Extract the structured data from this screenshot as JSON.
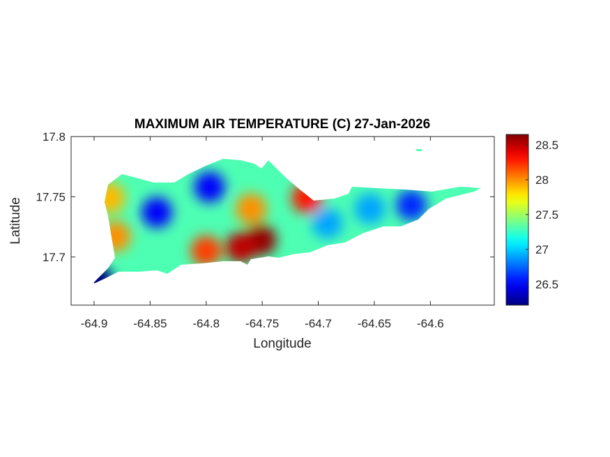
{
  "chart_data": {
    "type": "heatmap",
    "title": "MAXIMUM AIR TEMPERATURE (C) 27-Jan-2026",
    "x_label": "Longitude",
    "y_label": "Latitude",
    "xlim": [
      -64.9205,
      -64.543
    ],
    "ylim": [
      17.66,
      17.8
    ],
    "xticks": [
      -64.9,
      -64.85,
      -64.8,
      -64.75,
      -64.7,
      -64.65,
      -64.6
    ],
    "yticks": [
      17.7,
      17.75,
      17.8
    ],
    "clim": [
      26.2,
      28.65
    ],
    "cticks": [
      26.5,
      27,
      27.5,
      28,
      28.5
    ],
    "colormap": "jet",
    "x": [
      -64.751,
      -64.769,
      -64.8,
      -64.76,
      -64.71,
      -64.881,
      -64.886,
      -64.844,
      -64.797,
      -64.617,
      -64.897,
      -64.654,
      -64.692
    ],
    "y": [
      17.714,
      17.708,
      17.705,
      17.74,
      17.749,
      17.717,
      17.749,
      17.737,
      17.758,
      17.743,
      17.681,
      17.74,
      17.728
    ],
    "values": [
      28.6,
      28.5,
      28.2,
      28.0,
      28.3,
      28.0,
      27.9,
      26.5,
      26.5,
      26.6,
      26.2,
      26.9,
      26.9
    ]
  }
}
